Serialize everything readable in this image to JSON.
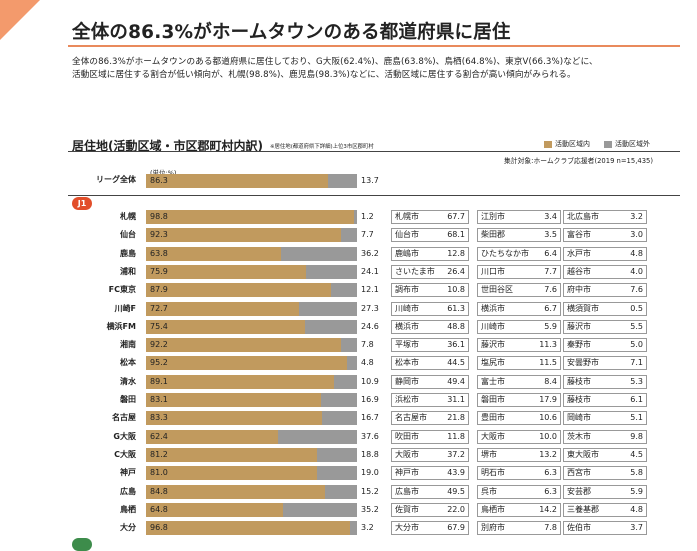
{
  "headline": "全体の86.3%がホームタウンのある都道府県に居住",
  "lead_lines": [
    "全体の86.3%がホームタウンのある都道府県に居住しており、G大阪(62.4%)、鹿島(63.8%)、鳥栖(64.8%)、東京V(66.3%)などに、",
    "活動区域に居住する割合が低い傾向が、札幌(98.8%)、鹿児島(98.3%)などに、活動区域に居住する割合が高い傾向がみられる。"
  ],
  "section_title": "居住地(活動区域・市区郡町村内訳)",
  "section_note": "※居住地(都道府県下詳細)上位3市区郡町村",
  "legend": [
    {
      "label": "活動区域内",
      "color": "#c19a5e"
    },
    {
      "label": "活動区域外",
      "color": "#999999"
    }
  ],
  "sample_note": "集計対象:ホームクラブ応援者(2019 n=15,435)",
  "unit_label": "(単位:%)",
  "league_badge": "J1",
  "chart_data": {
    "type": "bar",
    "stacked": true,
    "ylim": [
      0,
      100
    ],
    "series_names": [
      "活動区域内",
      "活動区域外"
    ],
    "overall": {
      "label": "リーグ全体",
      "inside": 86.3,
      "outside": 13.7
    },
    "rows": [
      {
        "team": "札幌",
        "inside": 98.8,
        "outside": 1.2,
        "cities": [
          [
            "札幌市",
            67.7
          ],
          [
            "江別市",
            3.4
          ],
          [
            "北広島市",
            3.2
          ]
        ]
      },
      {
        "team": "仙台",
        "inside": 92.3,
        "outside": 7.7,
        "cities": [
          [
            "仙台市",
            68.1
          ],
          [
            "柴田郡",
            3.5
          ],
          [
            "富谷市",
            3.0
          ]
        ]
      },
      {
        "team": "鹿島",
        "inside": 63.8,
        "outside": 36.2,
        "cities": [
          [
            "鹿嶋市",
            12.8
          ],
          [
            "ひたちなか市",
            6.4
          ],
          [
            "水戸市",
            4.8
          ]
        ]
      },
      {
        "team": "浦和",
        "inside": 75.9,
        "outside": 24.1,
        "cities": [
          [
            "さいたま市",
            26.4
          ],
          [
            "川口市",
            7.7
          ],
          [
            "越谷市",
            4.0
          ]
        ]
      },
      {
        "team": "FC東京",
        "inside": 87.9,
        "outside": 12.1,
        "cities": [
          [
            "調布市",
            10.8
          ],
          [
            "世田谷区",
            7.6
          ],
          [
            "府中市",
            7.6
          ]
        ]
      },
      {
        "team": "川崎F",
        "inside": 72.7,
        "outside": 27.3,
        "cities": [
          [
            "川崎市",
            61.3
          ],
          [
            "横浜市",
            6.7
          ],
          [
            "横須賀市",
            0.5
          ]
        ]
      },
      {
        "team": "横浜FM",
        "inside": 75.4,
        "outside": 24.6,
        "cities": [
          [
            "横浜市",
            48.8
          ],
          [
            "川崎市",
            5.9
          ],
          [
            "藤沢市",
            5.5
          ]
        ]
      },
      {
        "team": "湘南",
        "inside": 92.2,
        "outside": 7.8,
        "cities": [
          [
            "平塚市",
            36.1
          ],
          [
            "藤沢市",
            11.3
          ],
          [
            "秦野市",
            5.0
          ]
        ]
      },
      {
        "team": "松本",
        "inside": 95.2,
        "outside": 4.8,
        "cities": [
          [
            "松本市",
            44.5
          ],
          [
            "塩尻市",
            11.5
          ],
          [
            "安曇野市",
            7.1
          ]
        ]
      },
      {
        "team": "清水",
        "inside": 89.1,
        "outside": 10.9,
        "cities": [
          [
            "静岡市",
            49.4
          ],
          [
            "富士市",
            8.4
          ],
          [
            "藤枝市",
            5.3
          ]
        ]
      },
      {
        "team": "磐田",
        "inside": 83.1,
        "outside": 16.9,
        "cities": [
          [
            "浜松市",
            31.1
          ],
          [
            "磐田市",
            17.9
          ],
          [
            "藤枝市",
            6.1
          ]
        ]
      },
      {
        "team": "名古屋",
        "inside": 83.3,
        "outside": 16.7,
        "cities": [
          [
            "名古屋市",
            21.8
          ],
          [
            "豊田市",
            10.6
          ],
          [
            "岡崎市",
            5.1
          ]
        ]
      },
      {
        "team": "G大阪",
        "inside": 62.4,
        "outside": 37.6,
        "cities": [
          [
            "吹田市",
            11.8
          ],
          [
            "大阪市",
            10.0
          ],
          [
            "茨木市",
            9.8
          ]
        ]
      },
      {
        "team": "C大阪",
        "inside": 81.2,
        "outside": 18.8,
        "cities": [
          [
            "大阪市",
            37.2
          ],
          [
            "堺市",
            13.2
          ],
          [
            "東大阪市",
            4.5
          ]
        ]
      },
      {
        "team": "神戸",
        "inside": 81.0,
        "outside": 19.0,
        "cities": [
          [
            "神戸市",
            43.9
          ],
          [
            "明石市",
            6.3
          ],
          [
            "西宮市",
            5.8
          ]
        ]
      },
      {
        "team": "広島",
        "inside": 84.8,
        "outside": 15.2,
        "cities": [
          [
            "広島市",
            49.5
          ],
          [
            "呉市",
            6.3
          ],
          [
            "安芸郡",
            5.9
          ]
        ]
      },
      {
        "team": "鳥栖",
        "inside": 64.8,
        "outside": 35.2,
        "cities": [
          [
            "佐賀市",
            22.0
          ],
          [
            "鳥栖市",
            14.2
          ],
          [
            "三養基郡",
            4.8
          ]
        ]
      },
      {
        "team": "大分",
        "inside": 96.8,
        "outside": 3.2,
        "cities": [
          [
            "大分市",
            67.9
          ],
          [
            "別府市",
            7.8
          ],
          [
            "佐伯市",
            3.7
          ]
        ]
      }
    ]
  }
}
